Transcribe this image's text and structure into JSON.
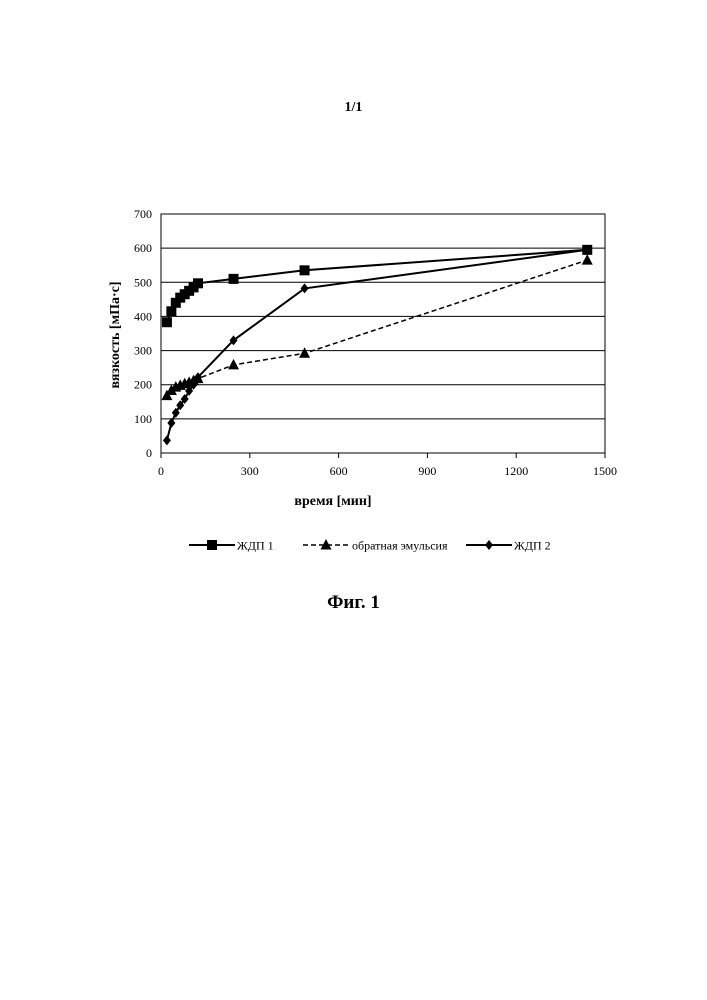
{
  "page": {
    "number": "1/1",
    "caption": "Фиг. 1"
  },
  "chart_data": {
    "type": "line",
    "title": "",
    "xlabel": "время [мин]",
    "ylabel": "вязкость [мПа·с]",
    "xlim": [
      0,
      1500
    ],
    "ylim": [
      0,
      700
    ],
    "xticks": [
      0,
      300,
      600,
      900,
      1200,
      1500
    ],
    "yticks": [
      0,
      100,
      200,
      300,
      400,
      500,
      600,
      700
    ],
    "grid": "horizontal",
    "legend_position": "bottom",
    "series": [
      {
        "name": "ЖДП 1",
        "marker": "square",
        "line": "solid",
        "color": "#000000",
        "x": [
          20,
          35,
          50,
          65,
          80,
          95,
          110,
          125,
          245,
          485,
          1440
        ],
        "y": [
          383,
          415,
          440,
          455,
          465,
          475,
          485,
          497,
          510,
          535,
          595
        ]
      },
      {
        "name": "обратная эмульсия",
        "marker": "triangle",
        "line": "dashed",
        "color": "#000000",
        "x": [
          20,
          35,
          50,
          65,
          80,
          95,
          110,
          125,
          245,
          485,
          1440
        ],
        "y": [
          168,
          183,
          193,
          198,
          203,
          207,
          212,
          218,
          258,
          292,
          565
        ]
      },
      {
        "name": "ЖДП 2",
        "marker": "diamond",
        "line": "solid",
        "color": "#000000",
        "x": [
          20,
          35,
          50,
          65,
          80,
          95,
          110,
          125,
          245,
          485,
          1440
        ],
        "y": [
          37,
          88,
          118,
          140,
          158,
          182,
          200,
          222,
          330,
          482,
          595
        ]
      }
    ]
  }
}
